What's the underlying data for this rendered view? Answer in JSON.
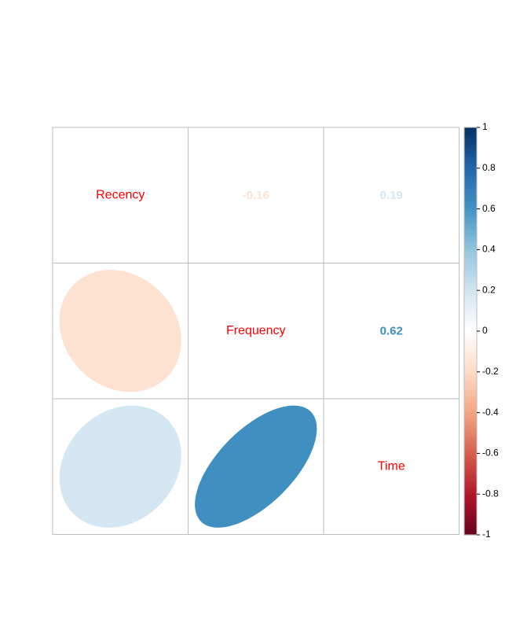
{
  "chart_data": {
    "type": "heatmap",
    "variables": [
      "Recency",
      "Frequency",
      "Time"
    ],
    "matrix": [
      [
        1,
        -0.16,
        0.19
      ],
      [
        -0.16,
        1,
        0.62
      ],
      [
        0.19,
        0.62,
        1
      ]
    ],
    "upper_panel": "number",
    "lower_panel": "ellipse",
    "diagonal": "variable-name",
    "colorbar": {
      "range": [
        -1,
        1
      ],
      "ticks": [
        "1",
        "0.8",
        "0.6",
        "0.4",
        "0.2",
        "0",
        "-0.2",
        "-0.4",
        "-0.6",
        "-0.8",
        "-1"
      ]
    },
    "colors": {
      "diagonal_label": "#ff0000",
      "grid": "#bebebe",
      "scale_neg": "#67001f",
      "scale_mid": "#ffffff",
      "scale_pos": "#053061"
    }
  }
}
